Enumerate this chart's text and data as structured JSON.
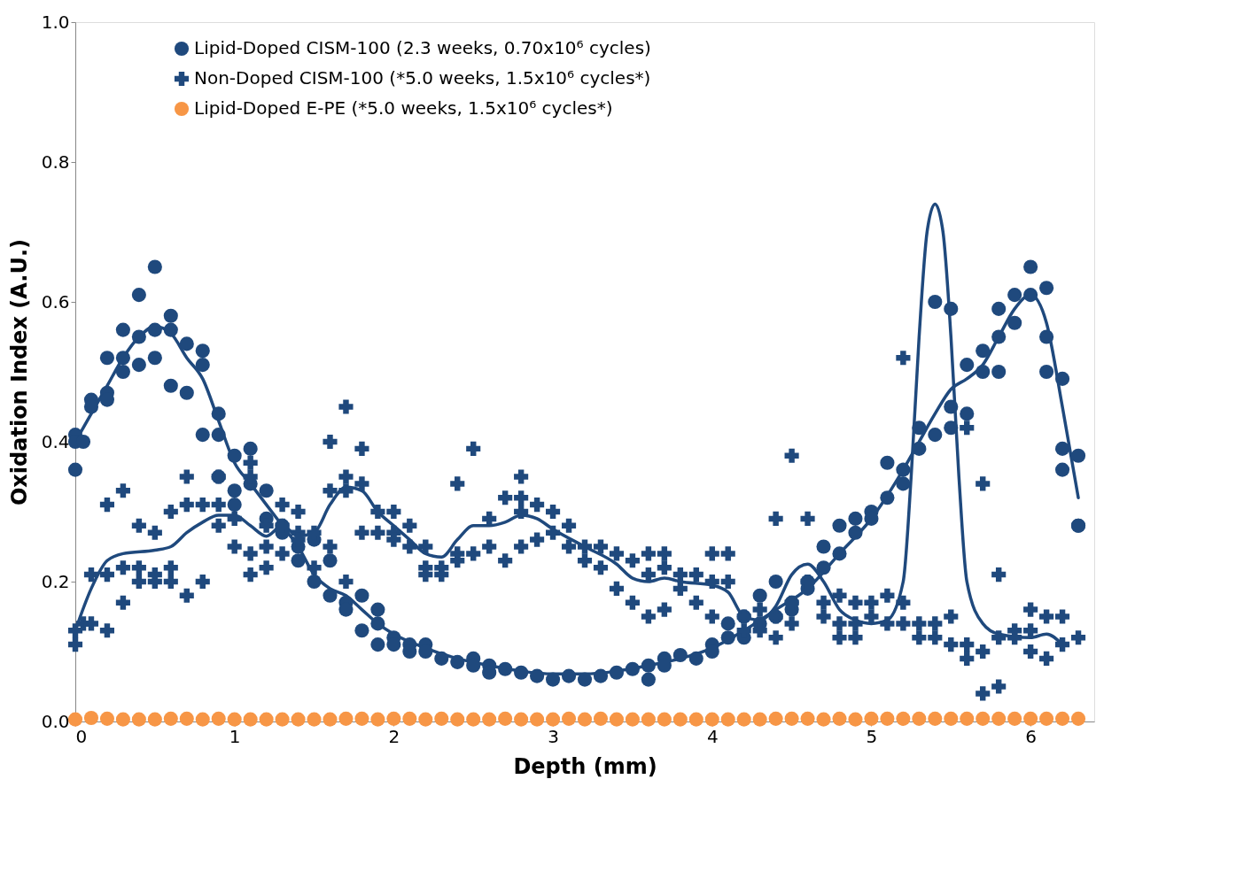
{
  "chart_data": {
    "type": "scatter",
    "xlabel": "Depth (mm)",
    "ylabel": "Oxidation Index (A.U.)",
    "xlim": [
      0,
      6.4
    ],
    "xticks": [
      0,
      1,
      2,
      3,
      4,
      5,
      6
    ],
    "ylim": [
      0,
      1
    ],
    "yticks": [
      {
        "value": 0,
        "label": "0.0"
      },
      0.2,
      0.4,
      0.6,
      0.8,
      {
        "value": 1,
        "label": "1.0"
      }
    ],
    "grid": false,
    "legend": "top",
    "series": [
      {
        "name": "Lipid-Doped CISM-100 (2.3 weeks, 0.70x10⁶ cycles)",
        "color": "#1f497d",
        "marker": "circle",
        "x": [
          0,
          0,
          0,
          0.05,
          0.1,
          0.1,
          0.2,
          0.2,
          0.2,
          0.3,
          0.3,
          0.3,
          0.4,
          0.4,
          0.4,
          0.5,
          0.5,
          0.5,
          0.6,
          0.6,
          0.6,
          0.7,
          0.7,
          0.8,
          0.8,
          0.8,
          0.9,
          0.9,
          0.9,
          1.0,
          1.0,
          1.0,
          1.1,
          1.1,
          1.2,
          1.2,
          1.3,
          1.3,
          1.4,
          1.4,
          1.5,
          1.5,
          1.6,
          1.6,
          1.7,
          1.7,
          1.8,
          1.8,
          1.9,
          1.9,
          1.9,
          2.0,
          2.0,
          2.1,
          2.1,
          2.2,
          2.2,
          2.3,
          2.4,
          2.5,
          2.5,
          2.6,
          2.6,
          2.7,
          2.8,
          2.9,
          3.0,
          3.1,
          3.2,
          3.3,
          3.4,
          3.5,
          3.6,
          3.6,
          3.7,
          3.7,
          3.8,
          3.9,
          4.0,
          4.0,
          4.1,
          4.1,
          4.2,
          4.2,
          4.3,
          4.3,
          4.4,
          4.4,
          4.5,
          4.5,
          4.6,
          4.6,
          4.7,
          4.7,
          4.8,
          4.8,
          4.9,
          4.9,
          5.0,
          5.0,
          5.1,
          5.1,
          5.2,
          5.2,
          5.3,
          5.3,
          5.4,
          5.4,
          5.5,
          5.5,
          5.5,
          5.6,
          5.6,
          5.7,
          5.7,
          5.8,
          5.8,
          5.8,
          5.9,
          5.9,
          6.0,
          6.0,
          6.1,
          6.1,
          6.1,
          6.2,
          6.2,
          6.2,
          6.3,
          6.3,
          6.3
        ],
        "values": [
          0.41,
          0.4,
          0.36,
          0.4,
          0.46,
          0.45,
          0.52,
          0.47,
          0.46,
          0.56,
          0.52,
          0.5,
          0.61,
          0.55,
          0.51,
          0.65,
          0.56,
          0.52,
          0.58,
          0.56,
          0.48,
          0.54,
          0.47,
          0.53,
          0.51,
          0.41,
          0.44,
          0.41,
          0.35,
          0.38,
          0.33,
          0.31,
          0.39,
          0.34,
          0.33,
          0.29,
          0.28,
          0.27,
          0.25,
          0.23,
          0.26,
          0.2,
          0.23,
          0.18,
          0.17,
          0.16,
          0.18,
          0.13,
          0.16,
          0.14,
          0.11,
          0.12,
          0.11,
          0.11,
          0.1,
          0.11,
          0.1,
          0.09,
          0.085,
          0.09,
          0.08,
          0.08,
          0.07,
          0.075,
          0.07,
          0.065,
          0.06,
          0.065,
          0.06,
          0.065,
          0.07,
          0.075,
          0.08,
          0.06,
          0.09,
          0.08,
          0.095,
          0.09,
          0.11,
          0.1,
          0.14,
          0.12,
          0.15,
          0.12,
          0.18,
          0.14,
          0.2,
          0.15,
          0.17,
          0.16,
          0.2,
          0.19,
          0.25,
          0.22,
          0.28,
          0.24,
          0.29,
          0.27,
          0.3,
          0.29,
          0.37,
          0.32,
          0.36,
          0.34,
          0.42,
          0.39,
          0.6,
          0.41,
          0.59,
          0.45,
          0.42,
          0.51,
          0.44,
          0.53,
          0.5,
          0.59,
          0.55,
          0.5,
          0.61,
          0.57,
          0.65,
          0.61,
          0.62,
          0.55,
          0.5,
          0.49,
          0.39,
          0.36,
          0.38,
          0.28,
          0.28
        ]
      },
      {
        "name": "Non-Doped CISM-100 (*5.0 weeks, 1.5x10⁶ cycles*)",
        "color": "#1f497d",
        "marker": "cross",
        "x": [
          0,
          0,
          0.05,
          0.1,
          0.1,
          0.2,
          0.2,
          0.2,
          0.3,
          0.3,
          0.3,
          0.4,
          0.4,
          0.4,
          0.5,
          0.5,
          0.5,
          0.6,
          0.6,
          0.6,
          0.7,
          0.7,
          0.7,
          0.8,
          0.8,
          0.9,
          0.9,
          0.9,
          1.0,
          1.0,
          1.1,
          1.1,
          1.1,
          1.1,
          1.2,
          1.2,
          1.2,
          1.3,
          1.3,
          1.3,
          1.4,
          1.4,
          1.4,
          1.5,
          1.5,
          1.6,
          1.6,
          1.6,
          1.7,
          1.7,
          1.7,
          1.7,
          1.8,
          1.8,
          1.8,
          1.9,
          1.9,
          2.0,
          2.0,
          2.0,
          2.1,
          2.1,
          2.2,
          2.2,
          2.2,
          2.3,
          2.3,
          2.4,
          2.4,
          2.4,
          2.5,
          2.5,
          2.6,
          2.6,
          2.7,
          2.7,
          2.8,
          2.8,
          2.8,
          2.8,
          2.9,
          2.9,
          3.0,
          3.0,
          3.1,
          3.1,
          3.2,
          3.2,
          3.3,
          3.3,
          3.4,
          3.4,
          3.5,
          3.5,
          3.6,
          3.6,
          3.6,
          3.7,
          3.7,
          3.7,
          3.8,
          3.8,
          3.9,
          3.9,
          4.0,
          4.0,
          4.0,
          4.1,
          4.1,
          4.2,
          4.2,
          4.3,
          4.3,
          4.4,
          4.4,
          4.4,
          4.5,
          4.5,
          4.5,
          4.6,
          4.6,
          4.7,
          4.7,
          4.8,
          4.8,
          4.8,
          4.9,
          4.9,
          4.9,
          5.0,
          5.0,
          5.1,
          5.1,
          5.2,
          5.2,
          5.2,
          5.3,
          5.3,
          5.4,
          5.4,
          5.5,
          5.5,
          5.6,
          5.6,
          5.6,
          5.7,
          5.7,
          5.7,
          5.8,
          5.8,
          5.8,
          5.9,
          5.9,
          6.0,
          6.0,
          6.0,
          6.1,
          6.1,
          6.2,
          6.2,
          6.3
        ],
        "values": [
          0.13,
          0.11,
          0.14,
          0.21,
          0.14,
          0.31,
          0.21,
          0.13,
          0.33,
          0.22,
          0.17,
          0.28,
          0.22,
          0.2,
          0.27,
          0.21,
          0.2,
          0.3,
          0.22,
          0.2,
          0.35,
          0.31,
          0.18,
          0.31,
          0.2,
          0.35,
          0.31,
          0.28,
          0.29,
          0.25,
          0.37,
          0.35,
          0.24,
          0.21,
          0.28,
          0.25,
          0.22,
          0.31,
          0.28,
          0.24,
          0.3,
          0.27,
          0.26,
          0.27,
          0.22,
          0.4,
          0.33,
          0.25,
          0.45,
          0.35,
          0.33,
          0.2,
          0.39,
          0.34,
          0.27,
          0.3,
          0.27,
          0.3,
          0.27,
          0.26,
          0.28,
          0.25,
          0.25,
          0.22,
          0.21,
          0.22,
          0.21,
          0.34,
          0.24,
          0.23,
          0.39,
          0.24,
          0.29,
          0.25,
          0.32,
          0.23,
          0.35,
          0.32,
          0.3,
          0.25,
          0.31,
          0.26,
          0.3,
          0.27,
          0.28,
          0.25,
          0.25,
          0.23,
          0.25,
          0.22,
          0.24,
          0.19,
          0.23,
          0.17,
          0.24,
          0.21,
          0.15,
          0.24,
          0.22,
          0.16,
          0.21,
          0.19,
          0.21,
          0.17,
          0.24,
          0.2,
          0.15,
          0.24,
          0.2,
          0.15,
          0.13,
          0.16,
          0.13,
          0.29,
          0.15,
          0.12,
          0.38,
          0.17,
          0.14,
          0.29,
          0.2,
          0.17,
          0.15,
          0.18,
          0.14,
          0.12,
          0.17,
          0.14,
          0.12,
          0.17,
          0.15,
          0.18,
          0.14,
          0.52,
          0.17,
          0.14,
          0.14,
          0.12,
          0.14,
          0.12,
          0.15,
          0.11,
          0.42,
          0.11,
          0.09,
          0.34,
          0.1,
          0.04,
          0.21,
          0.12,
          0.05,
          0.13,
          0.12,
          0.16,
          0.13,
          0.1,
          0.15,
          0.09,
          0.15,
          0.11,
          0.12
        ]
      },
      {
        "name": "Lipid-Doped  E-PE          (*5.0 weeks, 1.5x10⁶ cycles*)",
        "color": "#f79646",
        "marker": "circle",
        "x": [
          0,
          0.1,
          0.2,
          0.3,
          0.4,
          0.5,
          0.6,
          0.7,
          0.8,
          0.9,
          1.0,
          1.1,
          1.2,
          1.3,
          1.4,
          1.5,
          1.6,
          1.7,
          1.8,
          1.9,
          2.0,
          2.1,
          2.2,
          2.3,
          2.4,
          2.5,
          2.6,
          2.7,
          2.8,
          2.9,
          3.0,
          3.1,
          3.2,
          3.3,
          3.4,
          3.5,
          3.6,
          3.7,
          3.8,
          3.9,
          4.0,
          4.1,
          4.2,
          4.3,
          4.4,
          4.5,
          4.6,
          4.7,
          4.8,
          4.9,
          5.0,
          5.1,
          5.2,
          5.3,
          5.4,
          5.5,
          5.6,
          5.7,
          5.8,
          5.9,
          6.0,
          6.1,
          6.2,
          6.3
        ],
        "values": [
          0.003,
          0.005,
          0.004,
          0.003,
          0.003,
          0.003,
          0.004,
          0.004,
          0.003,
          0.004,
          0.003,
          0.003,
          0.003,
          0.003,
          0.003,
          0.003,
          0.003,
          0.004,
          0.004,
          0.003,
          0.004,
          0.004,
          0.003,
          0.004,
          0.003,
          0.003,
          0.003,
          0.004,
          0.003,
          0.003,
          0.003,
          0.004,
          0.003,
          0.004,
          0.003,
          0.003,
          0.003,
          0.003,
          0.003,
          0.003,
          0.003,
          0.003,
          0.003,
          0.003,
          0.004,
          0.004,
          0.004,
          0.003,
          0.004,
          0.003,
          0.004,
          0.004,
          0.004,
          0.004,
          0.004,
          0.004,
          0.004,
          0.004,
          0.004,
          0.004,
          0.004,
          0.004,
          0.004,
          0.004
        ]
      },
      {
        "type": "line",
        "color": "#1f497d",
        "x": [
          0,
          0.1,
          0.2,
          0.3,
          0.4,
          0.5,
          0.6,
          0.7,
          0.8,
          0.9,
          1.0,
          1.1,
          1.2,
          1.3,
          1.4,
          1.5,
          1.6,
          1.7,
          1.8,
          1.9,
          2.0,
          2.2,
          2.4,
          2.6,
          2.8,
          3.0,
          3.2,
          3.4,
          3.6,
          3.8,
          4.0,
          4.2,
          4.4,
          4.6,
          4.8,
          5.0,
          5.2,
          5.3,
          5.4,
          5.5,
          5.6,
          5.7,
          5.8,
          5.9,
          6.0,
          6.1,
          6.2,
          6.3
        ],
        "values": [
          0.4,
          0.44,
          0.48,
          0.52,
          0.55,
          0.565,
          0.555,
          0.52,
          0.49,
          0.43,
          0.37,
          0.34,
          0.31,
          0.28,
          0.25,
          0.21,
          0.19,
          0.18,
          0.16,
          0.14,
          0.125,
          0.105,
          0.09,
          0.08,
          0.072,
          0.068,
          0.068,
          0.072,
          0.08,
          0.09,
          0.105,
          0.13,
          0.16,
          0.19,
          0.24,
          0.29,
          0.36,
          0.4,
          0.44,
          0.475,
          0.49,
          0.51,
          0.55,
          0.59,
          0.61,
          0.57,
          0.45,
          0.32
        ]
      },
      {
        "type": "line",
        "color": "#1f497d",
        "x": [
          0,
          0.1,
          0.2,
          0.3,
          0.5,
          0.6,
          0.7,
          0.8,
          0.9,
          1.0,
          1.1,
          1.2,
          1.3,
          1.4,
          1.5,
          1.6,
          1.7,
          1.8,
          1.9,
          2.0,
          2.1,
          2.2,
          2.3,
          2.4,
          2.5,
          2.6,
          2.7,
          2.8,
          2.9,
          3.0,
          3.2,
          3.4,
          3.5,
          3.6,
          3.7,
          3.8,
          4.0,
          4.1,
          4.2,
          4.3,
          4.4,
          4.5,
          4.6,
          4.7,
          4.8,
          4.9,
          5.0,
          5.1,
          5.2,
          5.25,
          5.3,
          5.35,
          5.4,
          5.45,
          5.5,
          5.55,
          5.6,
          5.7,
          5.8,
          6.0,
          6.1,
          6.2
        ],
        "values": [
          0.13,
          0.19,
          0.23,
          0.24,
          0.245,
          0.25,
          0.27,
          0.285,
          0.295,
          0.295,
          0.28,
          0.265,
          0.28,
          0.265,
          0.27,
          0.31,
          0.335,
          0.33,
          0.3,
          0.28,
          0.26,
          0.24,
          0.235,
          0.26,
          0.28,
          0.28,
          0.285,
          0.295,
          0.29,
          0.275,
          0.25,
          0.225,
          0.205,
          0.2,
          0.205,
          0.2,
          0.195,
          0.185,
          0.15,
          0.145,
          0.165,
          0.21,
          0.225,
          0.2,
          0.16,
          0.145,
          0.14,
          0.145,
          0.2,
          0.35,
          0.55,
          0.7,
          0.74,
          0.7,
          0.55,
          0.35,
          0.2,
          0.14,
          0.125,
          0.12,
          0.125,
          0.11
        ]
      }
    ]
  }
}
